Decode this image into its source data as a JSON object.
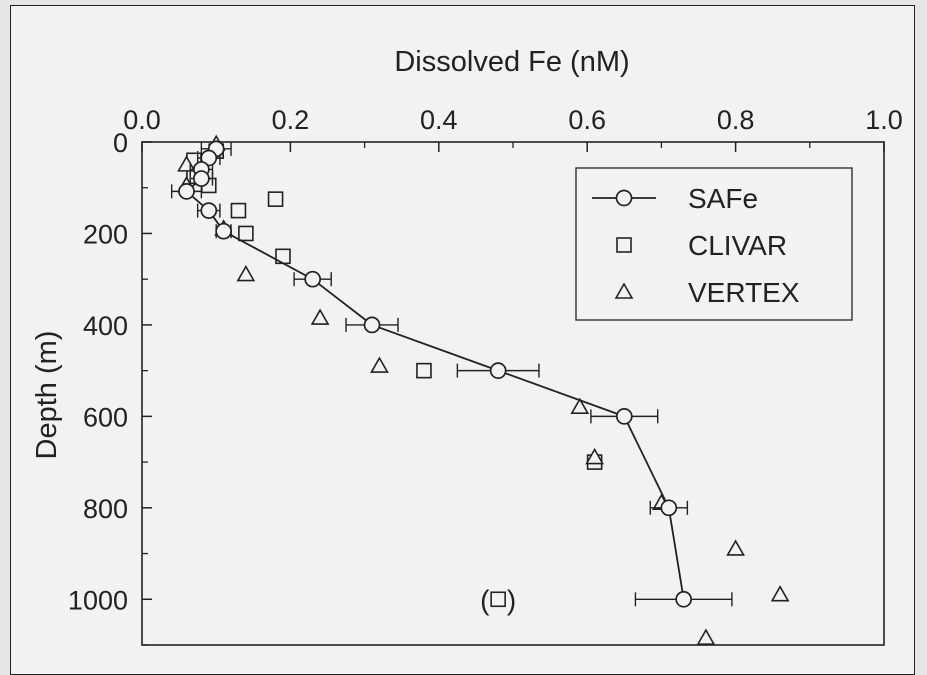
{
  "chart_data": {
    "type": "scatter",
    "title": "",
    "xlabel": "Dissolved Fe (nM)",
    "ylabel": "Depth (m)",
    "xlim": [
      0.0,
      1.0
    ],
    "ylim": [
      0,
      1100
    ],
    "y_inverted": true,
    "x_axis_position": "top",
    "x_ticks": [
      "0.0",
      "0.2",
      "0.4",
      "0.6",
      "0.8",
      "1.0"
    ],
    "y_ticks": [
      "0",
      "200",
      "400",
      "600",
      "800",
      "1000"
    ],
    "grid": false,
    "legend_position": "top-right",
    "series": [
      {
        "name": "SAFe",
        "marker": "circle",
        "line": true,
        "points": [
          {
            "x": 0.1,
            "y": 15,
            "xerr": 0.02
          },
          {
            "x": 0.09,
            "y": 35,
            "xerr": 0.015
          },
          {
            "x": 0.08,
            "y": 60,
            "xerr": 0.015
          },
          {
            "x": 0.08,
            "y": 80,
            "xerr": 0.015
          },
          {
            "x": 0.06,
            "y": 108,
            "xerr": 0.02
          },
          {
            "x": 0.09,
            "y": 150,
            "xerr": 0.015
          },
          {
            "x": 0.11,
            "y": 195,
            "xerr": 0.01
          },
          {
            "x": 0.23,
            "y": 300,
            "xerr": 0.025
          },
          {
            "x": 0.31,
            "y": 400,
            "xerr": 0.035
          },
          {
            "x": 0.48,
            "y": 500,
            "xerr": 0.055
          },
          {
            "x": 0.65,
            "y": 600,
            "xerr": 0.045
          },
          {
            "x": 0.71,
            "y": 800,
            "xerr": 0.025
          },
          {
            "x": 0.73,
            "y": 1000,
            "xerr": 0.065
          }
        ]
      },
      {
        "name": "CLIVAR",
        "marker": "square",
        "line": false,
        "points": [
          {
            "x": 0.1,
            "y": 20
          },
          {
            "x": 0.07,
            "y": 40
          },
          {
            "x": 0.07,
            "y": 75
          },
          {
            "x": 0.09,
            "y": 95
          },
          {
            "x": 0.18,
            "y": 125
          },
          {
            "x": 0.13,
            "y": 150
          },
          {
            "x": 0.14,
            "y": 200
          },
          {
            "x": 0.19,
            "y": 250
          },
          {
            "x": 0.38,
            "y": 500
          },
          {
            "x": 0.61,
            "y": 700
          },
          {
            "x": 0.48,
            "y": 1000
          }
        ]
      },
      {
        "name": "VERTEX",
        "marker": "triangle",
        "line": false,
        "points": [
          {
            "x": 0.1,
            "y": 5
          },
          {
            "x": 0.06,
            "y": 50
          },
          {
            "x": 0.06,
            "y": 95
          },
          {
            "x": 0.11,
            "y": 190
          },
          {
            "x": 0.14,
            "y": 290
          },
          {
            "x": 0.24,
            "y": 385
          },
          {
            "x": 0.32,
            "y": 490
          },
          {
            "x": 0.59,
            "y": 580
          },
          {
            "x": 0.61,
            "y": 690
          },
          {
            "x": 0.7,
            "y": 790
          },
          {
            "x": 0.8,
            "y": 890
          },
          {
            "x": 0.86,
            "y": 990
          },
          {
            "x": 0.76,
            "y": 1085
          }
        ]
      }
    ],
    "annotations": [
      {
        "text": "(",
        "x": 0.462,
        "y": 1000
      },
      {
        "text": ")",
        "x": 0.498,
        "y": 1000
      }
    ]
  }
}
